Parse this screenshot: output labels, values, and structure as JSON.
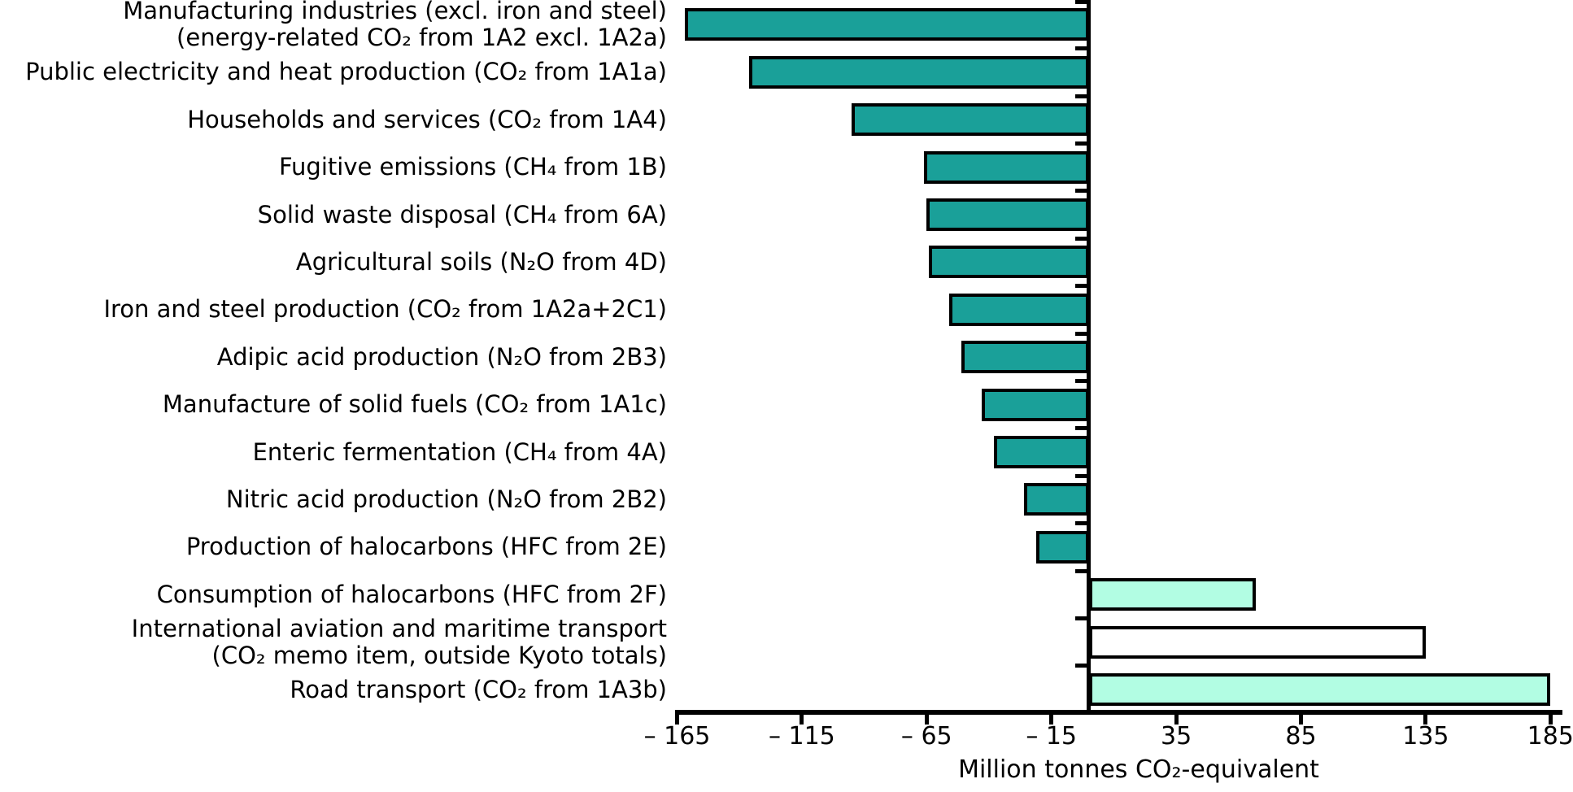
{
  "chart_data": {
    "type": "bar",
    "orientation": "horizontal",
    "title": "",
    "xlabel": "Million tonnes CO₂-equivalent",
    "ylabel": "",
    "xlim": [
      -165,
      185
    ],
    "grid": false,
    "legend": "none",
    "tick_style": "ticks-between-categories-on-left-axis",
    "categories": [
      [
        "Manufacturing industries (excl. iron and steel)",
        "(energy-related CO₂ from 1A2 excl. 1A2a)"
      ],
      [
        "Public electricity and heat production (CO₂ from 1A1a)"
      ],
      [
        "Households and services (CO₂ from 1A4)"
      ],
      [
        "Fugitive emissions (CH₄ from 1B)"
      ],
      [
        "Solid waste disposal (CH₄ from 6A)"
      ],
      [
        "Agricultural soils (N₂O from 4D)"
      ],
      [
        "Iron and steel production (CO₂ from 1A2a+2C1)"
      ],
      [
        "Adipic acid production (N₂O from 2B3)"
      ],
      [
        "Manufacture of solid fuels (CO₂ from 1A1c)"
      ],
      [
        "Enteric fermentation (CH₄ from 4A)"
      ],
      [
        "Nitric acid production (N₂O from 2B2)"
      ],
      [
        "Production of halocarbons (HFC from 2E)"
      ],
      [
        "Consumption of halocarbons (HFC from 2F)"
      ],
      [
        "International aviation and maritime transport",
        "(CO₂ memo item, outside Kyoto totals)"
      ],
      [
        "Road transport (CO₂ from 1A3b)"
      ]
    ],
    "values": [
      -162,
      -136,
      -95,
      -66,
      -65,
      -64,
      -56,
      -51,
      -43,
      -38,
      -26,
      -21,
      67,
      135,
      185
    ],
    "bar_colors": [
      "#1AA099",
      "#1AA099",
      "#1AA099",
      "#1AA099",
      "#1AA099",
      "#1AA099",
      "#1AA099",
      "#1AA099",
      "#1AA099",
      "#1AA099",
      "#1AA099",
      "#1AA099",
      "#B2FDE3",
      "#FFFFFF",
      "#B2FDE3"
    ],
    "colors": {
      "decrease_teal": "#1AA099",
      "increase_mint": "#B2FDE3",
      "memo_white": "#FFFFFF",
      "outline": "#000000",
      "background": "#FFFFFF"
    },
    "xticks": [
      {
        "value": -165,
        "label": "– 165"
      },
      {
        "value": -115,
        "label": "– 115"
      },
      {
        "value": -65,
        "label": "– 65"
      },
      {
        "value": -15,
        "label": "– 15"
      },
      {
        "value": 35,
        "label": "35"
      },
      {
        "value": 85,
        "label": "85"
      },
      {
        "value": 135,
        "label": "135"
      },
      {
        "value": 185,
        "label": "185"
      }
    ]
  }
}
